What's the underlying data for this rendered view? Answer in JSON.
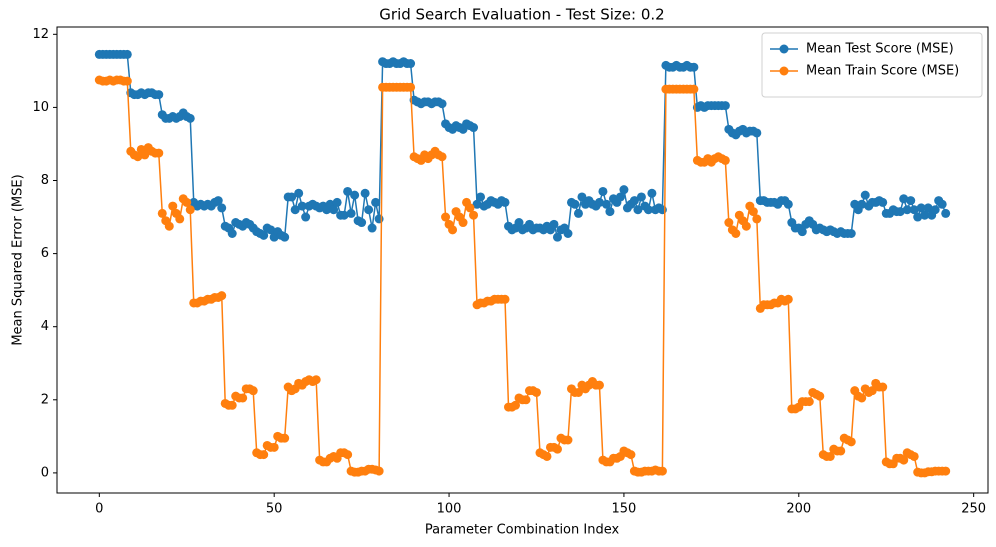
{
  "chart_data": {
    "type": "line",
    "title": "Grid Search Evaluation - Test Size: 0.2",
    "xlabel": "Parameter Combination Index",
    "ylabel": "Mean Squared Error (MSE)",
    "legend": "upper right",
    "xlim": [
      -12.1,
      254.1
    ],
    "xticks": [
      0,
      50,
      100,
      150,
      200,
      250
    ],
    "ylim": [
      -0.55,
      12.2
    ],
    "yticks": [
      0,
      2,
      4,
      6,
      8,
      10,
      12
    ],
    "x": [
      0,
      1,
      2,
      3,
      4,
      5,
      6,
      7,
      8,
      9,
      10,
      11,
      12,
      13,
      14,
      15,
      16,
      17,
      18,
      19,
      20,
      21,
      22,
      23,
      24,
      25,
      26,
      27,
      28,
      29,
      30,
      31,
      32,
      33,
      34,
      35,
      36,
      37,
      38,
      39,
      40,
      41,
      42,
      43,
      44,
      45,
      46,
      47,
      48,
      49,
      50,
      51,
      52,
      53,
      54,
      55,
      56,
      57,
      58,
      59,
      60,
      61,
      62,
      63,
      64,
      65,
      66,
      67,
      68,
      69,
      70,
      71,
      72,
      73,
      74,
      75,
      76,
      77,
      78,
      79,
      80,
      81,
      82,
      83,
      84,
      85,
      86,
      87,
      88,
      89,
      90,
      91,
      92,
      93,
      94,
      95,
      96,
      97,
      98,
      99,
      100,
      101,
      102,
      103,
      104,
      105,
      106,
      107,
      108,
      109,
      110,
      111,
      112,
      113,
      114,
      115,
      116,
      117,
      118,
      119,
      120,
      121,
      122,
      123,
      124,
      125,
      126,
      127,
      128,
      129,
      130,
      131,
      132,
      133,
      134,
      135,
      136,
      137,
      138,
      139,
      140,
      141,
      142,
      143,
      144,
      145,
      146,
      147,
      148,
      149,
      150,
      151,
      152,
      153,
      154,
      155,
      156,
      157,
      158,
      159,
      160,
      161,
      162,
      163,
      164,
      165,
      166,
      167,
      168,
      169,
      170,
      171,
      172,
      173,
      174,
      175,
      176,
      177,
      178,
      179,
      180,
      181,
      182,
      183,
      184,
      185,
      186,
      187,
      188,
      189,
      190,
      191,
      192,
      193,
      194,
      195,
      196,
      197,
      198,
      199,
      200,
      201,
      202,
      203,
      204,
      205,
      206,
      207,
      208,
      209,
      210,
      211,
      212,
      213,
      214,
      215,
      216,
      217,
      218,
      219,
      220,
      221,
      222,
      223,
      224,
      225,
      226,
      227,
      228,
      229,
      230,
      231,
      232,
      233,
      234,
      235,
      236,
      237,
      238,
      239,
      240,
      241,
      242
    ],
    "series": [
      {
        "name": "Mean Test Score (MSE)",
        "color": "#1f77b4",
        "values": [
          11.45,
          11.45,
          11.45,
          11.45,
          11.45,
          11.45,
          11.45,
          11.45,
          11.45,
          10.4,
          10.35,
          10.35,
          10.4,
          10.35,
          10.4,
          10.4,
          10.35,
          10.35,
          9.8,
          9.7,
          9.7,
          9.75,
          9.7,
          9.75,
          9.85,
          9.75,
          9.7,
          7.4,
          7.3,
          7.35,
          7.3,
          7.35,
          7.3,
          7.4,
          7.45,
          7.25,
          6.75,
          6.7,
          6.55,
          6.85,
          6.8,
          6.75,
          6.85,
          6.8,
          6.7,
          6.6,
          6.55,
          6.5,
          6.7,
          6.65,
          6.45,
          6.6,
          6.5,
          6.45,
          7.55,
          7.55,
          7.2,
          7.65,
          7.3,
          7.0,
          7.3,
          7.35,
          7.3,
          7.25,
          7.3,
          7.2,
          7.35,
          7.2,
          7.4,
          7.05,
          7.05,
          7.7,
          7.1,
          7.6,
          6.9,
          6.85,
          7.65,
          7.2,
          6.7,
          7.4,
          6.95,
          11.25,
          11.2,
          11.2,
          11.25,
          11.2,
          11.2,
          11.25,
          11.2,
          11.2,
          10.2,
          10.15,
          10.1,
          10.15,
          10.15,
          10.1,
          10.15,
          10.15,
          10.1,
          9.55,
          9.45,
          9.4,
          9.5,
          9.45,
          9.4,
          9.55,
          9.5,
          9.45,
          7.35,
          7.55,
          7.3,
          7.35,
          7.45,
          7.4,
          7.35,
          7.45,
          7.4,
          6.75,
          6.65,
          6.7,
          6.85,
          6.65,
          6.7,
          6.8,
          6.65,
          6.7,
          6.7,
          6.65,
          6.75,
          6.65,
          6.8,
          6.45,
          6.65,
          6.7,
          6.55,
          7.4,
          7.35,
          7.1,
          7.55,
          7.35,
          7.45,
          7.35,
          7.3,
          7.4,
          7.7,
          7.35,
          7.15,
          7.5,
          7.4,
          7.55,
          7.75,
          7.25,
          7.35,
          7.45,
          7.2,
          7.55,
          7.3,
          7.2,
          7.65,
          7.2,
          7.25,
          7.2,
          11.15,
          11.1,
          11.1,
          11.15,
          11.1,
          11.1,
          11.15,
          11.1,
          11.1,
          10.0,
          10.05,
          10.0,
          10.05,
          10.05,
          10.05,
          10.05,
          10.05,
          10.05,
          9.4,
          9.3,
          9.25,
          9.35,
          9.4,
          9.3,
          9.35,
          9.35,
          9.3,
          7.45,
          7.45,
          7.4,
          7.4,
          7.4,
          7.35,
          7.45,
          7.45,
          7.35,
          6.85,
          6.7,
          6.7,
          6.6,
          6.8,
          6.9,
          6.8,
          6.65,
          6.7,
          6.65,
          6.6,
          6.65,
          6.6,
          6.55,
          6.6,
          6.55,
          6.55,
          6.55,
          7.35,
          7.2,
          7.35,
          7.6,
          7.3,
          7.4,
          7.4,
          7.45,
          7.4,
          7.1,
          7.1,
          7.2,
          7.15,
          7.15,
          7.5,
          7.2,
          7.45,
          7.2,
          7.0,
          7.25,
          7.05,
          7.25,
          7.05,
          7.2,
          7.45,
          7.35,
          7.1
        ]
      },
      {
        "name": "Mean Train Score (MSE)",
        "color": "#ff7f0e",
        "values": [
          10.75,
          10.72,
          10.72,
          10.75,
          10.72,
          10.75,
          10.75,
          10.72,
          10.72,
          8.8,
          8.7,
          8.65,
          8.85,
          8.7,
          8.9,
          8.8,
          8.75,
          8.75,
          7.1,
          6.9,
          6.75,
          7.3,
          7.1,
          6.95,
          7.5,
          7.4,
          7.2,
          4.65,
          4.65,
          4.7,
          4.7,
          4.75,
          4.75,
          4.8,
          4.8,
          4.85,
          1.9,
          1.85,
          1.85,
          2.1,
          2.05,
          2.05,
          2.3,
          2.3,
          2.25,
          0.55,
          0.5,
          0.5,
          0.75,
          0.7,
          0.7,
          1.0,
          0.95,
          0.95,
          2.35,
          2.25,
          2.3,
          2.45,
          2.4,
          2.5,
          2.55,
          2.5,
          2.55,
          0.35,
          0.3,
          0.3,
          0.4,
          0.45,
          0.4,
          0.55,
          0.55,
          0.5,
          0.05,
          0.02,
          0.02,
          0.05,
          0.05,
          0.1,
          0.1,
          0.08,
          0.05,
          10.55,
          10.55,
          10.55,
          10.55,
          10.55,
          10.55,
          10.55,
          10.55,
          10.55,
          8.65,
          8.6,
          8.55,
          8.7,
          8.6,
          8.7,
          8.8,
          8.7,
          8.65,
          7.0,
          6.8,
          6.65,
          7.15,
          7.0,
          6.85,
          7.4,
          7.25,
          7.05,
          4.6,
          4.65,
          4.65,
          4.7,
          4.7,
          4.75,
          4.75,
          4.75,
          4.75,
          1.8,
          1.8,
          1.85,
          2.05,
          2.0,
          2.0,
          2.25,
          2.25,
          2.2,
          0.55,
          0.5,
          0.45,
          0.7,
          0.7,
          0.65,
          0.95,
          0.9,
          0.9,
          2.3,
          2.2,
          2.2,
          2.4,
          2.3,
          2.4,
          2.5,
          2.4,
          2.4,
          0.35,
          0.3,
          0.3,
          0.4,
          0.4,
          0.45,
          0.6,
          0.55,
          0.5,
          0.05,
          0.02,
          0.02,
          0.05,
          0.05,
          0.05,
          0.08,
          0.05,
          0.05,
          10.5,
          10.5,
          10.5,
          10.5,
          10.5,
          10.5,
          10.5,
          10.5,
          10.5,
          8.55,
          8.5,
          8.5,
          8.6,
          8.5,
          8.6,
          8.65,
          8.6,
          8.55,
          6.85,
          6.65,
          6.55,
          7.05,
          6.9,
          6.75,
          7.3,
          7.15,
          6.95,
          4.5,
          4.6,
          4.6,
          4.6,
          4.65,
          4.65,
          4.75,
          4.7,
          4.75,
          1.75,
          1.75,
          1.8,
          1.95,
          1.95,
          1.95,
          2.2,
          2.15,
          2.1,
          0.5,
          0.45,
          0.45,
          0.65,
          0.6,
          0.6,
          0.95,
          0.9,
          0.85,
          2.25,
          2.1,
          2.05,
          2.3,
          2.2,
          2.25,
          2.45,
          2.35,
          2.35,
          0.3,
          0.25,
          0.25,
          0.4,
          0.4,
          0.35,
          0.55,
          0.5,
          0.45,
          0.02,
          0.0,
          0.0,
          0.03,
          0.03,
          0.05,
          0.05,
          0.05,
          0.05
        ]
      }
    ]
  }
}
